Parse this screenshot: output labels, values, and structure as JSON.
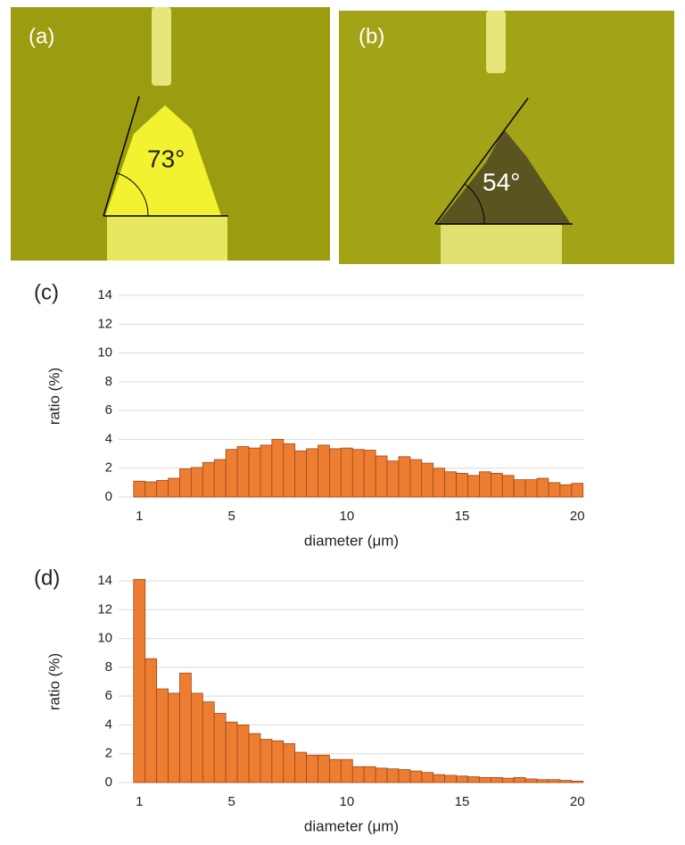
{
  "panels": [
    {
      "label": "(a)",
      "angle": "73°"
    },
    {
      "label": "(b)",
      "angle": "54°"
    }
  ],
  "chart_data": [
    {
      "type": "histogram",
      "panel_label": "(c)",
      "xlabel": "diameter (μm)",
      "ylabel": "ratio  (%)",
      "x": [
        1,
        1.5,
        2,
        2.5,
        3,
        3.5,
        4,
        4.5,
        5,
        5.5,
        6,
        6.5,
        7,
        7.5,
        8,
        8.5,
        9,
        9.5,
        10,
        10.5,
        11,
        11.5,
        12,
        12.5,
        13,
        13.5,
        14,
        14.5,
        15,
        15.5,
        16,
        16.5,
        17,
        17.5,
        18,
        18.5,
        19,
        19.5,
        20
      ],
      "values": [
        1.1,
        1.05,
        1.15,
        1.3,
        1.95,
        2.05,
        2.4,
        2.6,
        3.3,
        3.5,
        3.4,
        3.6,
        4.0,
        3.7,
        3.2,
        3.35,
        3.6,
        3.35,
        3.4,
        3.3,
        3.25,
        2.85,
        2.5,
        2.8,
        2.6,
        2.35,
        2.0,
        1.75,
        1.65,
        1.5,
        1.75,
        1.65,
        1.5,
        1.2,
        1.2,
        1.3,
        1.0,
        0.85,
        0.95
      ],
      "color": "#ed7d31",
      "xlim": [
        0.1,
        20.3
      ],
      "xticks": [
        1,
        5,
        10,
        15,
        20
      ],
      "ylim": [
        0,
        14
      ],
      "yticks": [
        0,
        2,
        4,
        6,
        8,
        10,
        12,
        14
      ],
      "grid": true
    },
    {
      "type": "histogram",
      "panel_label": "(d)",
      "xlabel": "diameter  (μm)",
      "ylabel": "ratio  (%)",
      "x": [
        1,
        1.5,
        2,
        2.5,
        3,
        3.5,
        4,
        4.5,
        5,
        5.5,
        6,
        6.5,
        7,
        7.5,
        8,
        8.5,
        9,
        9.5,
        10,
        10.5,
        11,
        11.5,
        12,
        12.5,
        13,
        13.5,
        14,
        14.5,
        15,
        15.5,
        16,
        16.5,
        17,
        17.5,
        18,
        18.5,
        19,
        19.5,
        20
      ],
      "values": [
        14.1,
        8.6,
        6.5,
        6.2,
        7.6,
        6.2,
        5.6,
        4.8,
        4.2,
        4.0,
        3.4,
        3.0,
        2.9,
        2.7,
        2.1,
        1.9,
        1.9,
        1.6,
        1.6,
        1.1,
        1.1,
        1.0,
        0.95,
        0.9,
        0.8,
        0.7,
        0.55,
        0.5,
        0.45,
        0.4,
        0.35,
        0.35,
        0.3,
        0.35,
        0.25,
        0.2,
        0.2,
        0.15,
        0.1
      ],
      "color": "#ed7d31",
      "xlim": [
        0.1,
        20.3
      ],
      "xticks": [
        1,
        5,
        10,
        15,
        20
      ],
      "ylim": [
        0,
        14
      ],
      "yticks": [
        0,
        2,
        4,
        6,
        8,
        10,
        12,
        14
      ],
      "grid": true
    }
  ]
}
